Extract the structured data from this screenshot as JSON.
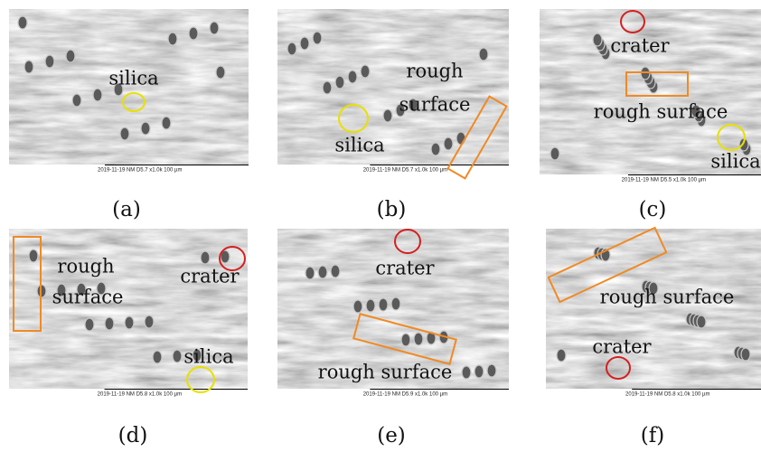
{
  "panels": [
    {
      "label": "(a)",
      "annotations": [
        "silica"
      ],
      "info": "2019-11-19     NM  D5.7  x1.0k     100 µm"
    },
    {
      "label": "(b)",
      "annotations": [
        "rough",
        "surface",
        "silica"
      ],
      "info": "2019-11-19     NM  D5.7  x1.0k     100 µm"
    },
    {
      "label": "(c)",
      "annotations": [
        "crater",
        "rough surface",
        "silica"
      ],
      "info": "2019-11-19     NM  D5.5  x1.0k     100 µm"
    },
    {
      "label": "(d)",
      "annotations": [
        "rough",
        "surface",
        "crater",
        "silica"
      ],
      "info": "2019-11-19     NM  D5.8  x1.0k     100 µm"
    },
    {
      "label": "(e)",
      "annotations": [
        "crater",
        "rough surface"
      ],
      "info": "2019-11-19     NM  D5.9  x1.0k     100 µm"
    },
    {
      "label": "(f)",
      "annotations": [
        "rough surface",
        "crater"
      ],
      "info": "2019-11-19     NM  D5.8  x1.0k     100 µm"
    }
  ]
}
